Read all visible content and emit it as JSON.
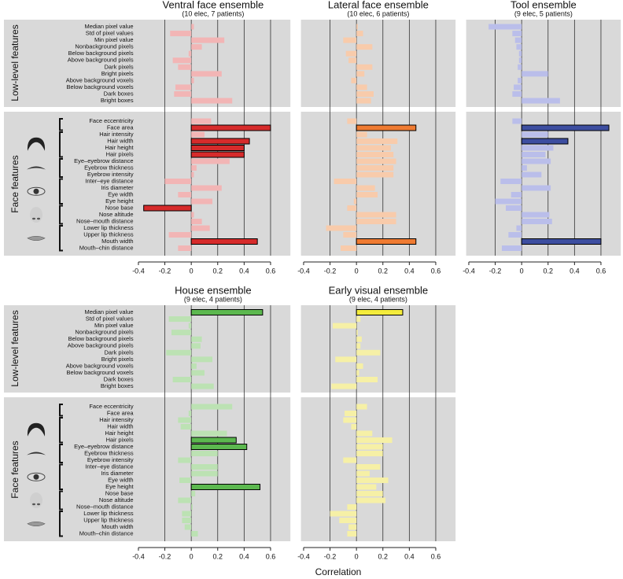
{
  "chart_data": [
    {
      "type": "bar",
      "title": "Ventral face ensemble",
      "subtitle": "(10 elec, 7 patients)",
      "groups": [
        "Low-level features",
        "Face features"
      ],
      "categories": [
        "Median pixel value",
        "Std of pixel values",
        "Min pixel value",
        "Nonbackground pixels",
        "Below background pixels",
        "Above background pixels",
        "Dark pixels",
        "Bright pixels",
        "Above background voxels",
        "Below background voxels",
        "Dark boxes",
        "Bright boxes",
        "Face eccentricity",
        "Face area",
        "Hair intensity",
        "Hair width",
        "Hair height",
        "Hair pixels",
        "Eye–eyebrow distance",
        "Eyebrow thickness",
        "Eyebrow intensity",
        "Inter–eye distance",
        "Iris diameter",
        "Eye width",
        "Eye height",
        "Nose base",
        "Nose altitude",
        "Nose–mouth distance",
        "Lower lip thickness",
        "Upper lip thickness",
        "Mouth width",
        "Mouth–chin distance"
      ],
      "values": [
        0.02,
        -0.16,
        0.25,
        0.08,
        -0.02,
        -0.14,
        -0.1,
        0.23,
        0.02,
        -0.12,
        -0.13,
        0.31,
        0.15,
        0.6,
        0.1,
        0.44,
        0.4,
        0.4,
        0.29,
        0.04,
        0.02,
        -0.2,
        0.23,
        -0.1,
        0.16,
        -0.36,
        0.02,
        0.08,
        0.14,
        -0.17,
        0.5,
        -0.1
      ],
      "color": "#d62b2b",
      "light_color": "#f2b5b5",
      "highlighted": [
        13,
        15,
        16,
        17,
        25,
        30
      ],
      "xlim": [
        -0.42,
        0.75
      ],
      "xticks": [
        -0.4,
        -0.2,
        0,
        0.2,
        0.4,
        0.6
      ],
      "grid": true
    },
    {
      "type": "bar",
      "title": "Lateral face ensemble",
      "subtitle": "(10 elec, 6 patients)",
      "values": [
        0.01,
        0.05,
        -0.1,
        0.12,
        -0.08,
        -0.06,
        0.12,
        0.06,
        -0.04,
        0.08,
        0.13,
        0.11,
        -0.07,
        0.45,
        0.08,
        0.31,
        0.26,
        0.28,
        0.3,
        0.28,
        0.28,
        -0.17,
        0.14,
        0.16,
        -0.02,
        -0.07,
        0.3,
        0.3,
        -0.23,
        -0.1,
        0.45,
        -0.12
      ],
      "color": "#ef7b32",
      "light_color": "#f8cbab",
      "highlighted": [
        13,
        30
      ],
      "xlim": [
        -0.42,
        0.75
      ],
      "xticks": [
        -0.4,
        -0.2,
        0,
        0.2,
        0.4,
        0.6
      ],
      "grid": true
    },
    {
      "type": "bar",
      "title": "Tool ensemble",
      "subtitle": "(9 elec, 5 patients)",
      "values": [
        -0.25,
        -0.07,
        -0.05,
        -0.04,
        -0.02,
        -0.02,
        -0.03,
        0.2,
        -0.03,
        -0.06,
        -0.07,
        0.29,
        -0.07,
        0.66,
        0.2,
        0.35,
        0.24,
        0.18,
        0.22,
        0.04,
        0.15,
        -0.16,
        0.22,
        -0.08,
        -0.2,
        -0.12,
        0.21,
        0.23,
        -0.04,
        -0.1,
        0.6,
        -0.15
      ],
      "color": "#3d4ea0",
      "light_color": "#babeea",
      "highlighted": [
        13,
        15,
        30
      ],
      "xlim": [
        -0.42,
        0.75
      ],
      "xticks": [
        -0.4,
        -0.2,
        0,
        0.2,
        0.4,
        0.6
      ],
      "grid": true
    },
    {
      "type": "bar",
      "title": "House ensemble",
      "subtitle": "(9 elec, 4 patients)",
      "groups": [
        "Low-level features",
        "Face features"
      ],
      "categories": [
        "Median pixel value",
        "Std of pixel values",
        "Min pixel value",
        "Nonbackground pixels",
        "Below background pixels",
        "Above background pixels",
        "Dark pixels",
        "Bright pixels",
        "Above background voxels",
        "Below background voxels",
        "Dark boxes",
        "Bright boxes",
        "Face eccentricity",
        "Face area",
        "Hair intensity",
        "Hair width",
        "Hair height",
        "Hair pixels",
        "Eye–eyebrow distance",
        "Eyebrow thickness",
        "Eyebrow intensity",
        "Inter–eye distance",
        "Iris diameter",
        "Eye width",
        "Eye height",
        "Nose base",
        "Nose altitude",
        "Nose–mouth distance",
        "Lower lip thickness",
        "Upper lip thickness",
        "Mouth width",
        "Mouth–chin distance"
      ],
      "values": [
        0.54,
        -0.17,
        -0.02,
        -0.15,
        0.08,
        0.07,
        -0.19,
        0.16,
        0.04,
        0.1,
        -0.14,
        0.17,
        0.31,
        -0.02,
        -0.1,
        -0.08,
        0.27,
        0.34,
        0.42,
        0.2,
        -0.1,
        0.2,
        0.2,
        -0.09,
        0.52,
        0.03,
        -0.1,
        0.01,
        -0.07,
        -0.07,
        -0.05,
        0.05
      ],
      "color": "#5cb84f",
      "light_color": "#bce2b3",
      "highlighted": [
        0,
        17,
        18,
        24
      ],
      "xlim": [
        -0.42,
        0.75
      ],
      "xticks": [
        -0.4,
        -0.2,
        0,
        0.2,
        0.4,
        0.6
      ],
      "grid": true
    },
    {
      "type": "bar",
      "title": "Early visual ensemble",
      "subtitle": "(9 elec, 4 patients)",
      "values": [
        0.35,
        0.03,
        -0.18,
        0.01,
        0.04,
        0.03,
        0.18,
        -0.16,
        0.05,
        0.02,
        0.16,
        -0.19,
        0.08,
        -0.09,
        -0.1,
        -0.04,
        0.12,
        0.27,
        0.2,
        0.2,
        -0.1,
        0.18,
        0.1,
        0.24,
        0.15,
        0.2,
        0.22,
        -0.07,
        -0.2,
        -0.13,
        -0.06,
        -0.07
      ],
      "color": "#f4ec3c",
      "light_color": "#f6f0a6",
      "highlighted": [
        0
      ],
      "xlim": [
        -0.42,
        0.75
      ],
      "xticks": [
        -0.4,
        -0.2,
        0,
        0.2,
        0.4,
        0.6
      ],
      "grid": true
    }
  ],
  "x_label": "Correlation"
}
